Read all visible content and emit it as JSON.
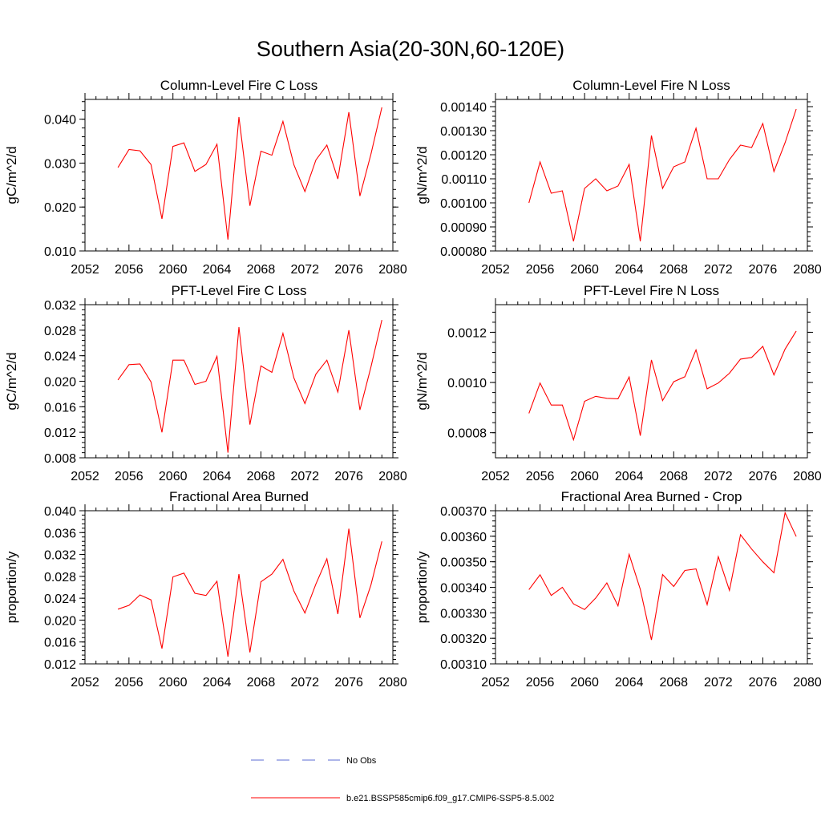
{
  "figure": {
    "title": "Southern Asia(20-30N,60-120E)"
  },
  "colors": {
    "model_line": "#ff0000",
    "obs_line": "#5b6bd6",
    "axis": "#000000"
  },
  "legend": {
    "obs_label": "No Obs",
    "model_label": "b.e21.BSSP585cmip6.f09_g17.CMIP6-SSP5-8.5.002"
  },
  "chart_data": [
    {
      "type": "line",
      "title": "Column-Level Fire C Loss",
      "ylabel": "gC/m^2/d",
      "xlim": [
        2052,
        2080
      ],
      "xticks": [
        "2052",
        "2056",
        "2060",
        "2064",
        "2068",
        "2072",
        "2076",
        "2080"
      ],
      "ylim": [
        0.01,
        0.0445
      ],
      "yticks": [
        "0.010",
        "0.020",
        "0.030",
        "0.040"
      ],
      "x": [
        2055,
        2056,
        2057,
        2058,
        2059,
        2060,
        2061,
        2062,
        2063,
        2064,
        2065,
        2066,
        2067,
        2068,
        2069,
        2070,
        2071,
        2072,
        2073,
        2074,
        2075,
        2076,
        2077,
        2078,
        2079
      ],
      "series": [
        {
          "values": [
            0.029,
            0.0331,
            0.0328,
            0.0297,
            0.0173,
            0.0338,
            0.0346,
            0.0281,
            0.0297,
            0.0343,
            0.0126,
            0.0405,
            0.0203,
            0.0327,
            0.0318,
            0.0395,
            0.0296,
            0.0235,
            0.0307,
            0.0341,
            0.0264,
            0.0416,
            0.0225,
            0.032,
            0.0427
          ]
        }
      ]
    },
    {
      "type": "line",
      "title": "Column-Level Fire N Loss",
      "ylabel": "gN/m^2/d",
      "xlim": [
        2052,
        2080
      ],
      "xticks": [
        "2052",
        "2056",
        "2060",
        "2064",
        "2068",
        "2072",
        "2076",
        "2080"
      ],
      "ylim": [
        0.0008,
        0.00143
      ],
      "yticks": [
        "0.00080",
        "0.00090",
        "0.00100",
        "0.00110",
        "0.00120",
        "0.00130",
        "0.00140"
      ],
      "x": [
        2055,
        2056,
        2057,
        2058,
        2059,
        2060,
        2061,
        2062,
        2063,
        2064,
        2065,
        2066,
        2067,
        2068,
        2069,
        2070,
        2071,
        2072,
        2073,
        2074,
        2075,
        2076,
        2077,
        2078,
        2079
      ],
      "series": [
        {
          "values": [
            0.001,
            0.00117,
            0.00104,
            0.00105,
            0.00084,
            0.00106,
            0.0011,
            0.00105,
            0.00107,
            0.00116,
            0.00084,
            0.00128,
            0.00106,
            0.00115,
            0.00117,
            0.00131,
            0.0011,
            0.0011,
            0.00118,
            0.00124,
            0.00123,
            0.00133,
            0.00113,
            0.00125,
            0.00139
          ]
        }
      ]
    },
    {
      "type": "line",
      "title": "PFT-Level Fire C Loss",
      "ylabel": "gC/m^2/d",
      "xlim": [
        2052,
        2080
      ],
      "xticks": [
        "2052",
        "2056",
        "2060",
        "2064",
        "2068",
        "2072",
        "2076",
        "2080"
      ],
      "ylim": [
        0.008,
        0.032
      ],
      "yticks": [
        "0.008",
        "0.012",
        "0.016",
        "0.020",
        "0.024",
        "0.028",
        "0.032"
      ],
      "x": [
        2055,
        2056,
        2057,
        2058,
        2059,
        2060,
        2061,
        2062,
        2063,
        2064,
        2065,
        2066,
        2067,
        2068,
        2069,
        2070,
        2071,
        2072,
        2073,
        2074,
        2075,
        2076,
        2077,
        2078,
        2079
      ],
      "series": [
        {
          "values": [
            0.0202,
            0.0226,
            0.0227,
            0.0199,
            0.012,
            0.0233,
            0.0233,
            0.0195,
            0.02,
            0.0239,
            0.0088,
            0.0285,
            0.0132,
            0.0224,
            0.0214,
            0.0275,
            0.0205,
            0.0165,
            0.0211,
            0.0233,
            0.0183,
            0.028,
            0.0155,
            0.0222,
            0.0296
          ]
        }
      ]
    },
    {
      "type": "line",
      "title": "PFT-Level Fire N Loss",
      "ylabel": "gN/m^2/d",
      "xlim": [
        2052,
        2080
      ],
      "xticks": [
        "2052",
        "2056",
        "2060",
        "2064",
        "2068",
        "2072",
        "2076",
        "2080"
      ],
      "ylim": [
        0.0007,
        0.00131
      ],
      "yticks": [
        "0.0008",
        "0.0010",
        "0.0012"
      ],
      "x": [
        2055,
        2056,
        2057,
        2058,
        2059,
        2060,
        2061,
        2062,
        2063,
        2064,
        2065,
        2066,
        2067,
        2068,
        2069,
        2070,
        2071,
        2072,
        2073,
        2074,
        2075,
        2076,
        2077,
        2078,
        2079
      ],
      "series": [
        {
          "values": [
            0.000877,
            0.000998,
            0.00091,
            0.00091,
            0.000772,
            0.000925,
            0.000945,
            0.000937,
            0.000935,
            0.001022,
            0.000788,
            0.00109,
            0.000928,
            0.001003,
            0.001023,
            0.00113,
            0.000975,
            0.000998,
            0.001037,
            0.001093,
            0.0011,
            0.001144,
            0.00103,
            0.001133,
            0.001205
          ]
        }
      ]
    },
    {
      "type": "line",
      "title": "Fractional Area Burned",
      "ylabel": "proportion/y",
      "xlim": [
        2052,
        2080
      ],
      "xticks": [
        "2052",
        "2056",
        "2060",
        "2064",
        "2068",
        "2072",
        "2076",
        "2080"
      ],
      "ylim": [
        0.012,
        0.04
      ],
      "yticks": [
        "0.012",
        "0.016",
        "0.020",
        "0.024",
        "0.028",
        "0.032",
        "0.036",
        "0.040"
      ],
      "x": [
        2055,
        2056,
        2057,
        2058,
        2059,
        2060,
        2061,
        2062,
        2063,
        2064,
        2065,
        2066,
        2067,
        2068,
        2069,
        2070,
        2071,
        2072,
        2073,
        2074,
        2075,
        2076,
        2077,
        2078,
        2079
      ],
      "series": [
        {
          "values": [
            0.022,
            0.0227,
            0.0246,
            0.0237,
            0.0148,
            0.0279,
            0.0286,
            0.0249,
            0.0245,
            0.0271,
            0.0133,
            0.0284,
            0.0141,
            0.027,
            0.0284,
            0.0311,
            0.0253,
            0.0213,
            0.0266,
            0.0312,
            0.0211,
            0.0367,
            0.0204,
            0.0264,
            0.0344
          ]
        }
      ]
    },
    {
      "type": "line",
      "title": "Fractional Area Burned - Crop",
      "ylabel": "proportion/y",
      "xlim": [
        2052,
        2080
      ],
      "xticks": [
        "2052",
        "2056",
        "2060",
        "2064",
        "2068",
        "2072",
        "2076",
        "2080"
      ],
      "ylim": [
        0.0031,
        0.0037
      ],
      "yticks": [
        "0.00310",
        "0.00320",
        "0.00330",
        "0.00340",
        "0.00350",
        "0.00360",
        "0.00370"
      ],
      "x": [
        2055,
        2056,
        2057,
        2058,
        2059,
        2060,
        2061,
        2062,
        2063,
        2064,
        2065,
        2066,
        2067,
        2068,
        2069,
        2070,
        2071,
        2072,
        2073,
        2074,
        2075,
        2076,
        2077,
        2078,
        2079
      ],
      "series": [
        {
          "values": [
            0.003391,
            0.003449,
            0.003368,
            0.0034,
            0.003335,
            0.003313,
            0.003358,
            0.003417,
            0.003327,
            0.003529,
            0.003392,
            0.003194,
            0.00345,
            0.003403,
            0.003466,
            0.003472,
            0.003332,
            0.00352,
            0.003388,
            0.003606,
            0.00355,
            0.0035,
            0.003457,
            0.003692,
            0.003599
          ]
        }
      ]
    }
  ]
}
